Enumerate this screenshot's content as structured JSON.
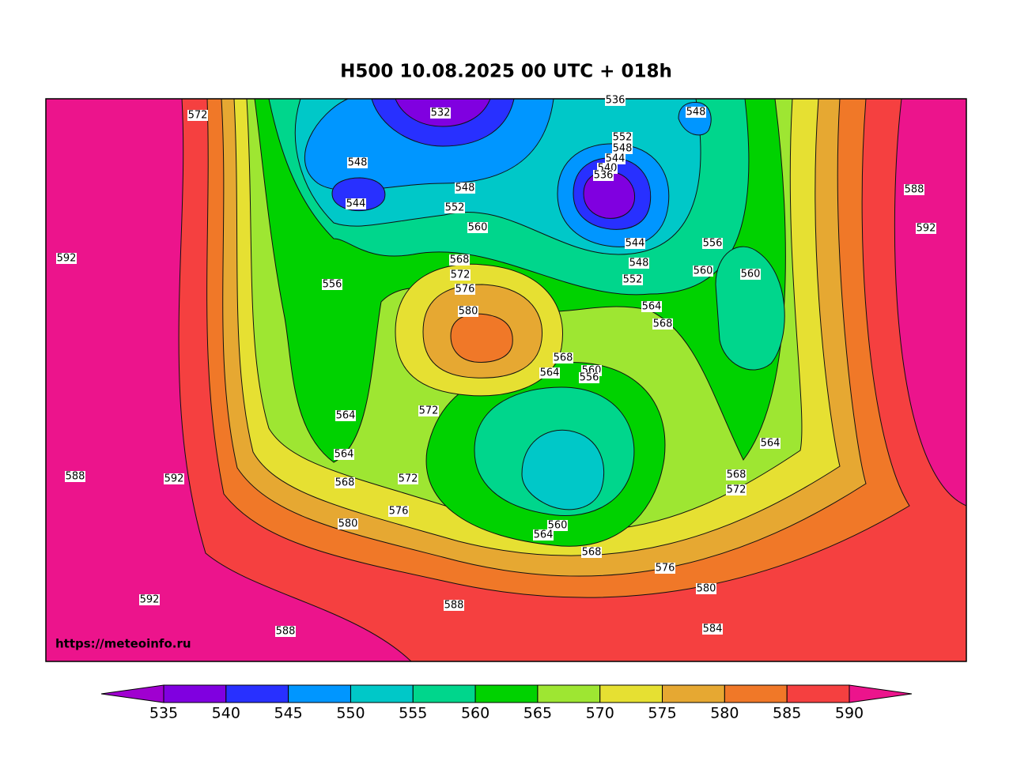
{
  "title": "H500  10.08.2025 00 UTC + 018h",
  "watermark": "https://meteoinfo.ru",
  "colorbar": {
    "levels": [
      535,
      540,
      545,
      550,
      555,
      560,
      565,
      570,
      575,
      580,
      585,
      590
    ],
    "colors": [
      "#a000d0",
      "#8000e0",
      "#2830ff",
      "#0096ff",
      "#00c8c8",
      "#00d68c",
      "#00d200",
      "#9ee632",
      "#e6e032",
      "#e6a832",
      "#f07828",
      "#f54040",
      "#ec148c"
    ]
  },
  "contour_labels": [
    572,
    532,
    536,
    548,
    548,
    544,
    548,
    552,
    552,
    548,
    544,
    540,
    536,
    560,
    544,
    556,
    588,
    592,
    592,
    556,
    568,
    572,
    576,
    580,
    548,
    552,
    560,
    560,
    564,
    568,
    568,
    564,
    560,
    556,
    572,
    564,
    564,
    568,
    572,
    564,
    568,
    572,
    588,
    592,
    576,
    580,
    560,
    564,
    568,
    576,
    580,
    592,
    588,
    584,
    588
  ]
}
